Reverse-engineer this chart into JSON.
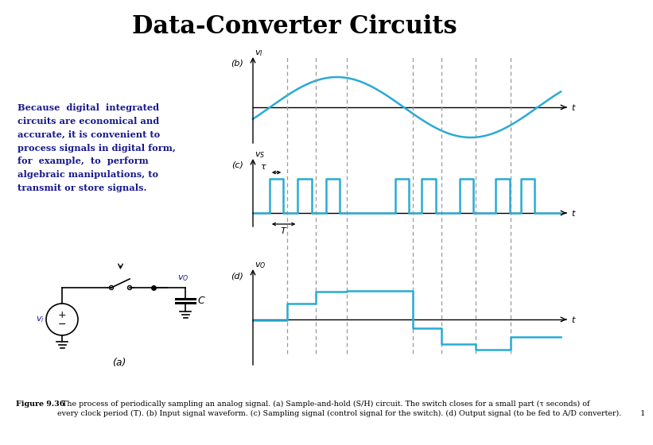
{
  "title": "Data-Converter Circuits",
  "title_fontsize": 22,
  "bg_color": "#ffffff",
  "cyan_color": "#29ABD4",
  "text_color_blue": "#1a1a8c",
  "left_text": "Because  digital  integrated\ncircuits are economical and\naccurate, it is convenient to\nprocess signals in digital form,\nfor  example,  to  perform\nalgebraic manipulations, to\ntransmit or store signals.",
  "caption_bold": "Figure 9.36",
  "caption_rest": "  The process of periodically sampling an analog signal. (a) Sample-and-hold (S/H) circuit. The switch closes for a small part (τ seconds) of\nevery clock period (T). (b) Input signal waveform. (c) Sampling signal (control signal for the switch). (d) Output signal (to be fed to A/D converter).        1"
}
